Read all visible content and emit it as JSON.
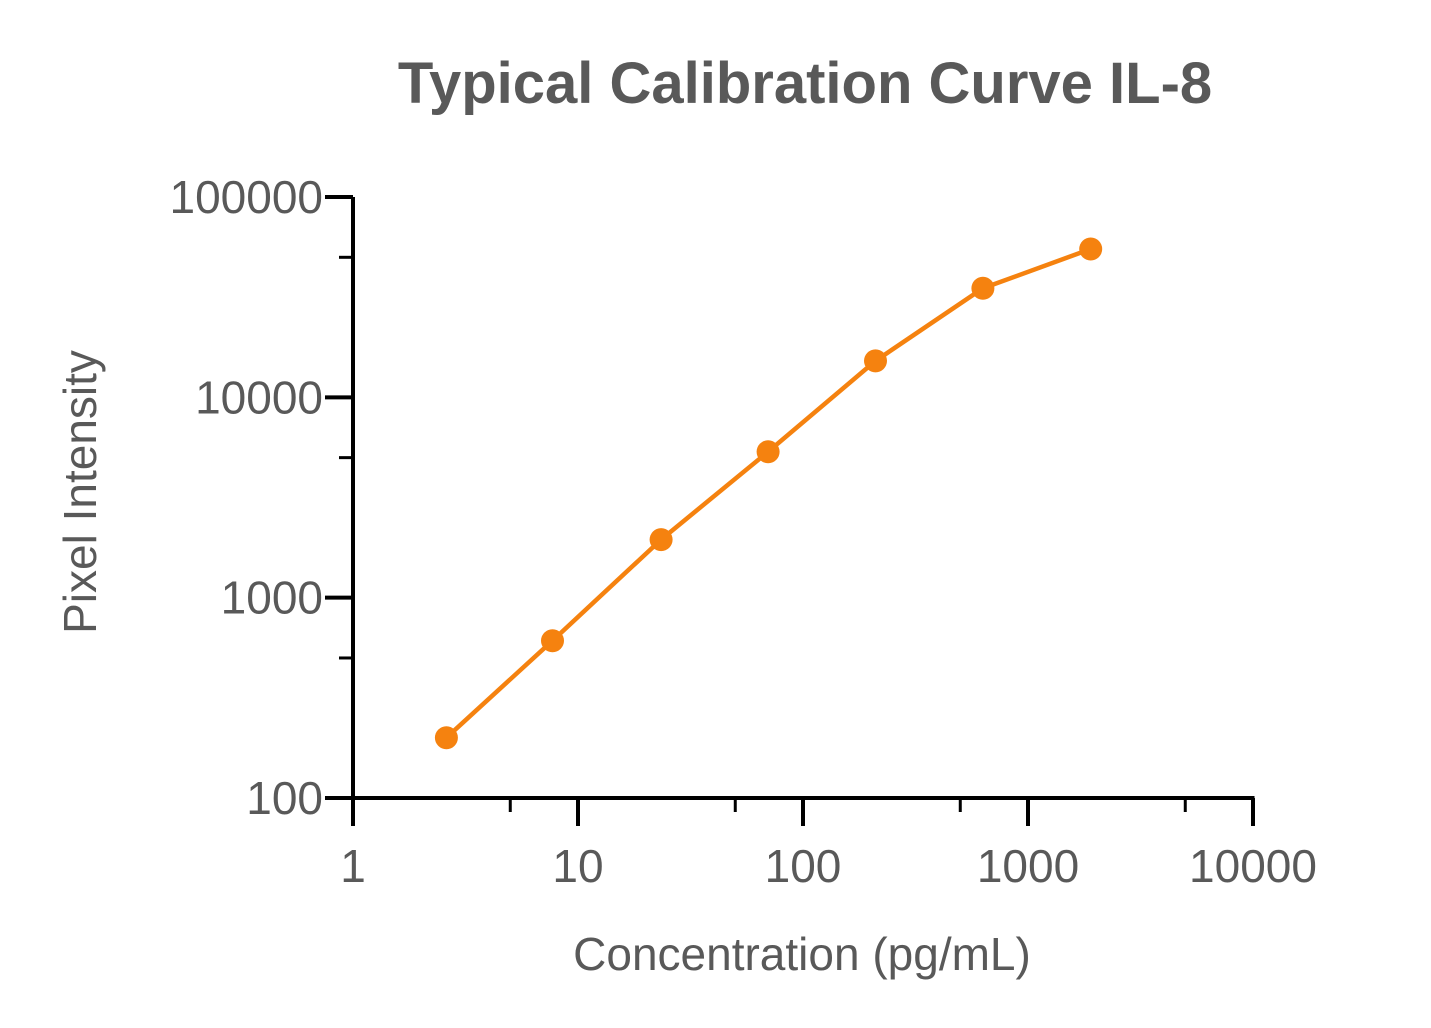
{
  "chart_data": {
    "type": "line",
    "title": "Typical Calibration Curve IL-8",
    "xlabel": "Concentration (pg/mL)",
    "ylabel": "Pixel Intensity",
    "x_scale": "log",
    "y_scale": "log",
    "xlim": [
      1,
      10000
    ],
    "ylim": [
      100,
      100000
    ],
    "x_ticks": [
      1,
      10,
      100,
      1000,
      10000
    ],
    "y_ticks": [
      100,
      1000,
      10000,
      100000
    ],
    "x_tick_labels": [
      "1",
      "10",
      "100",
      "1000",
      "10000"
    ],
    "y_tick_labels": [
      "100",
      "1000",
      "10000",
      "100000"
    ],
    "grid": false,
    "legend": "none",
    "series": [
      {
        "color": "#f5820f",
        "x": [
          2.6,
          7.7,
          23.4,
          70,
          210,
          630,
          1900
        ],
        "y": [
          200,
          610,
          1950,
          5350,
          15200,
          35000,
          55000
        ]
      }
    ]
  },
  "colors": {
    "axis": "#000000",
    "text": "#595959",
    "series": "#f5820f"
  }
}
